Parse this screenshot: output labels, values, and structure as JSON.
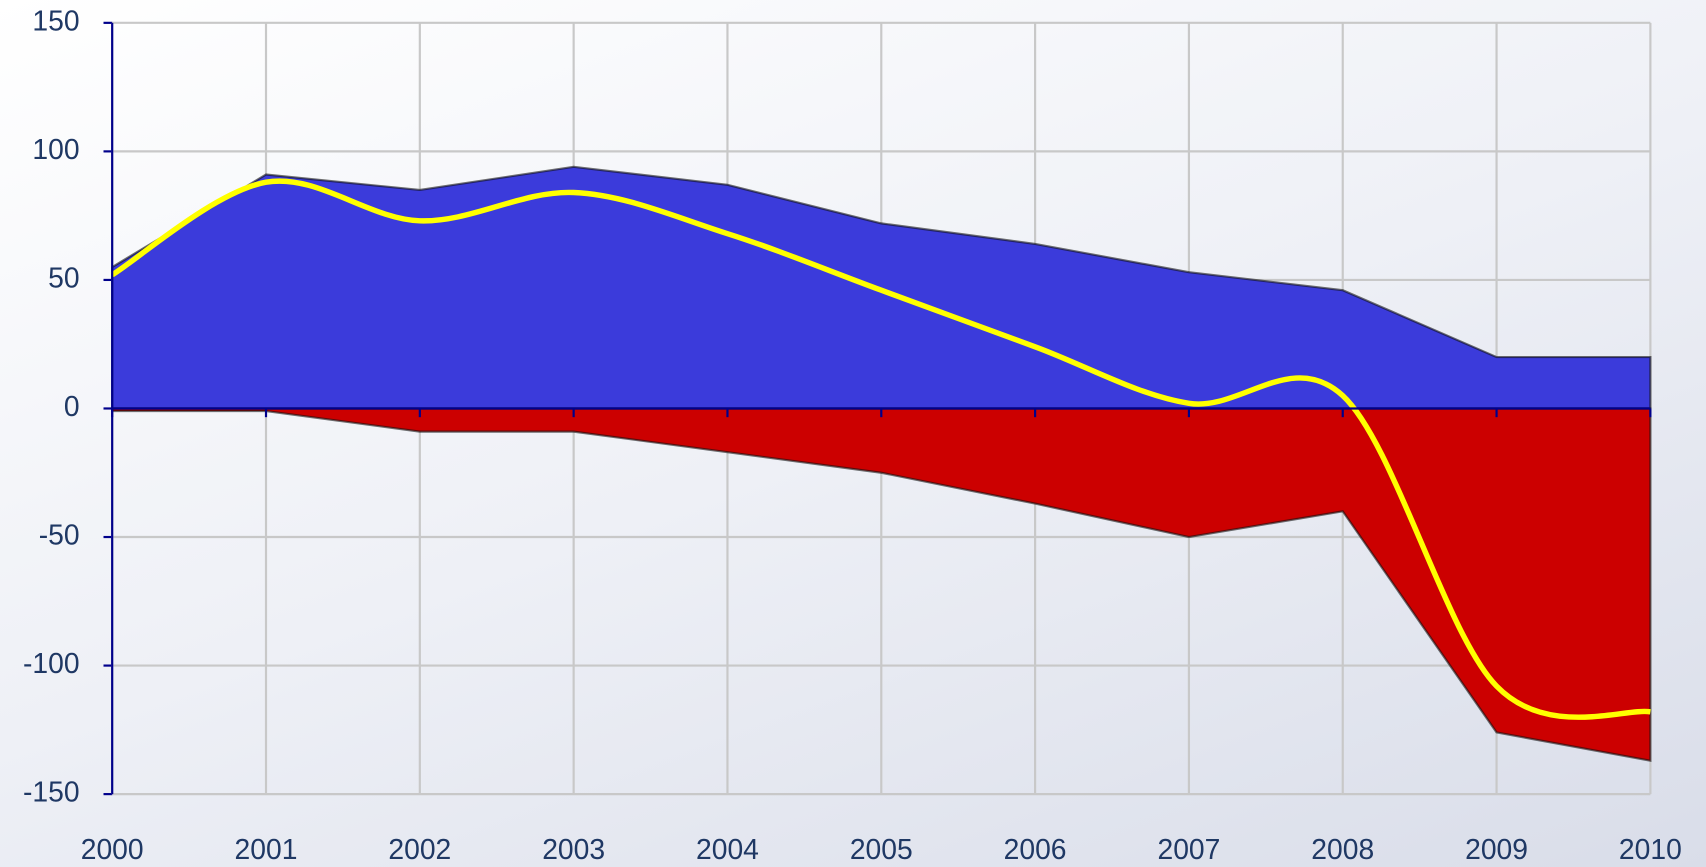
{
  "chart_data": {
    "type": "area",
    "x": [
      2000,
      2001,
      2002,
      2003,
      2004,
      2005,
      2006,
      2007,
      2008,
      2009,
      2010
    ],
    "series": [
      {
        "type": "area",
        "color": "#3b3bdb",
        "values": [
          55,
          91,
          85,
          94,
          87,
          72,
          64,
          53,
          46,
          20,
          20
        ]
      },
      {
        "type": "area",
        "color": "#cc0000",
        "values": [
          -1,
          -1,
          -9,
          -9,
          -17,
          -25,
          -37,
          -50,
          -40,
          -126,
          -137
        ]
      },
      {
        "type": "line",
        "color": "#ffff00",
        "smooth": true,
        "values": [
          52,
          88,
          73,
          84,
          68,
          46,
          24,
          2,
          5,
          -108,
          -118
        ]
      }
    ],
    "xlim": [
      2000,
      2010
    ],
    "xticks": [
      2000,
      2001,
      2002,
      2003,
      2004,
      2005,
      2006,
      2007,
      2008,
      2009,
      2010
    ],
    "ylim": [
      -150,
      150
    ],
    "yticks": [
      -150,
      -100,
      -50,
      0,
      50,
      100,
      150
    ],
    "grid": true
  }
}
